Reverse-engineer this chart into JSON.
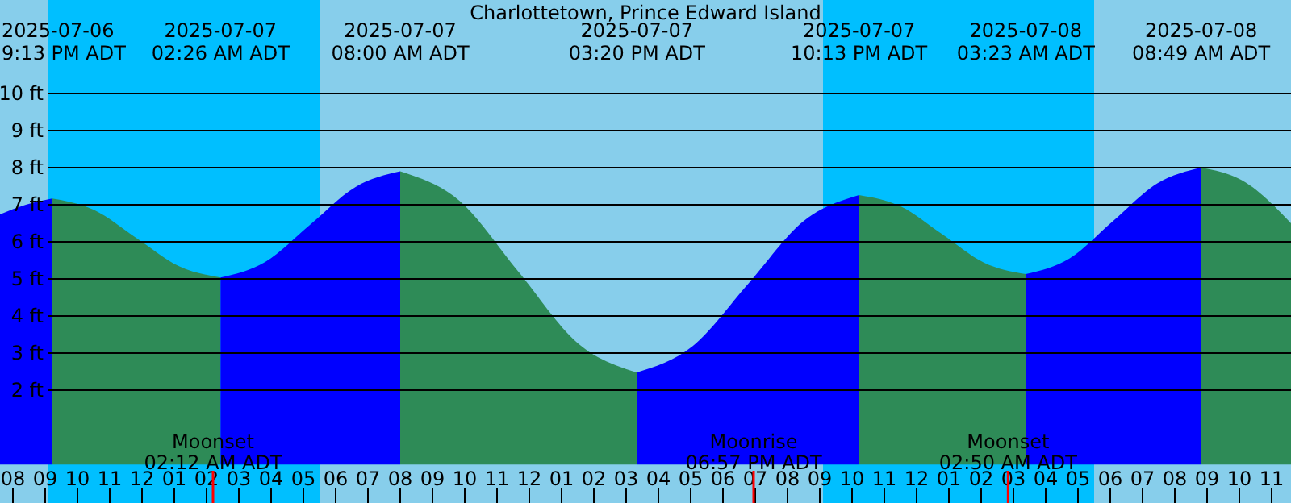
{
  "chart_data": {
    "type": "area",
    "title": "Charlottetown, Prince Edward Island",
    "series": [
      {
        "color": "#0000ff",
        "x": [
          "2025-07-06T19:36",
          "2025-07-06T20:24",
          "2025-07-06T21:13"
        ],
        "values": [
          6.74,
          7.0,
          7.17
        ]
      },
      {
        "color": "#2e8b57",
        "x": [
          "2025-07-06T21:13",
          "2025-07-06T22:31",
          "2025-07-06T23:50",
          "2025-07-07T01:08",
          "2025-07-07T02:26"
        ],
        "values": [
          7.17,
          6.86,
          6.1,
          5.35,
          5.04
        ]
      },
      {
        "color": "#0000ff",
        "x": [
          "2025-07-07T02:26",
          "2025-07-07T03:49",
          "2025-07-07T05:13",
          "2025-07-07T06:37",
          "2025-07-07T08:00"
        ],
        "values": [
          5.04,
          5.46,
          6.47,
          7.48,
          7.9
        ]
      },
      {
        "color": "#2e8b57",
        "x": [
          "2025-07-07T08:00",
          "2025-07-07T09:50",
          "2025-07-07T11:40",
          "2025-07-07T13:30",
          "2025-07-07T15:20"
        ],
        "values": [
          7.9,
          7.11,
          5.19,
          3.27,
          2.48
        ]
      },
      {
        "color": "#0000ff",
        "x": [
          "2025-07-07T15:20",
          "2025-07-07T17:03",
          "2025-07-07T18:47",
          "2025-07-07T20:30",
          "2025-07-07T22:13"
        ],
        "values": [
          2.48,
          3.18,
          4.87,
          6.56,
          7.26
        ]
      },
      {
        "color": "#2e8b57",
        "x": [
          "2025-07-07T22:13",
          "2025-07-07T23:31",
          "2025-07-08T00:48",
          "2025-07-08T02:05",
          "2025-07-08T03:23"
        ],
        "values": [
          7.26,
          6.95,
          6.2,
          5.44,
          5.13
        ]
      },
      {
        "color": "#0000ff",
        "x": [
          "2025-07-08T03:23",
          "2025-07-08T04:44",
          "2025-07-08T06:06",
          "2025-07-08T07:28",
          "2025-07-08T08:49"
        ],
        "values": [
          5.13,
          5.55,
          6.57,
          7.58,
          8.0
        ]
      },
      {
        "color": "#2e8b57",
        "x": [
          "2025-07-08T08:49",
          "2025-07-08T10:12",
          "2025-07-08T11:36"
        ],
        "values": [
          8.0,
          7.6,
          6.5
        ]
      }
    ],
    "xlim": [
      "2025-07-06T19:36",
      "2025-07-08T11:36"
    ],
    "xticks": [
      {
        "value": "2025-07-06T20:00",
        "label": "08"
      },
      {
        "value": "2025-07-06T21:00",
        "label": "09"
      },
      {
        "value": "2025-07-06T22:00",
        "label": "10"
      },
      {
        "value": "2025-07-06T23:00",
        "label": "11"
      },
      {
        "value": "2025-07-07T00:00",
        "label": "12"
      },
      {
        "value": "2025-07-07T01:00",
        "label": "01"
      },
      {
        "value": "2025-07-07T02:00",
        "label": "02"
      },
      {
        "value": "2025-07-07T03:00",
        "label": "03"
      },
      {
        "value": "2025-07-07T04:00",
        "label": "04"
      },
      {
        "value": "2025-07-07T05:00",
        "label": "05"
      },
      {
        "value": "2025-07-07T06:00",
        "label": "06"
      },
      {
        "value": "2025-07-07T07:00",
        "label": "07"
      },
      {
        "value": "2025-07-07T08:00",
        "label": "08"
      },
      {
        "value": "2025-07-07T09:00",
        "label": "09"
      },
      {
        "value": "2025-07-07T10:00",
        "label": "10"
      },
      {
        "value": "2025-07-07T11:00",
        "label": "11"
      },
      {
        "value": "2025-07-07T12:00",
        "label": "12"
      },
      {
        "value": "2025-07-07T13:00",
        "label": "01"
      },
      {
        "value": "2025-07-07T14:00",
        "label": "02"
      },
      {
        "value": "2025-07-07T15:00",
        "label": "03"
      },
      {
        "value": "2025-07-07T16:00",
        "label": "04"
      },
      {
        "value": "2025-07-07T17:00",
        "label": "05"
      },
      {
        "value": "2025-07-07T18:00",
        "label": "06"
      },
      {
        "value": "2025-07-07T19:00",
        "label": "07"
      },
      {
        "value": "2025-07-07T20:00",
        "label": "08"
      },
      {
        "value": "2025-07-07T21:00",
        "label": "09"
      },
      {
        "value": "2025-07-07T22:00",
        "label": "10"
      },
      {
        "value": "2025-07-07T23:00",
        "label": "11"
      },
      {
        "value": "2025-07-08T00:00",
        "label": "12"
      },
      {
        "value": "2025-07-08T01:00",
        "label": "01"
      },
      {
        "value": "2025-07-08T02:00",
        "label": "02"
      },
      {
        "value": "2025-07-08T03:00",
        "label": "03"
      },
      {
        "value": "2025-07-08T04:00",
        "label": "04"
      },
      {
        "value": "2025-07-08T05:00",
        "label": "05"
      },
      {
        "value": "2025-07-08T06:00",
        "label": "06"
      },
      {
        "value": "2025-07-08T07:00",
        "label": "07"
      },
      {
        "value": "2025-07-08T08:00",
        "label": "08"
      },
      {
        "value": "2025-07-08T09:00",
        "label": "09"
      },
      {
        "value": "2025-07-08T10:00",
        "label": "10"
      },
      {
        "value": "2025-07-08T11:00",
        "label": "11"
      }
    ],
    "ylim": [
      -1.04,
      12.52
    ],
    "yticks": [
      {
        "value": 2,
        "label": "2 ft"
      },
      {
        "value": 3,
        "label": "3 ft"
      },
      {
        "value": 4,
        "label": "4 ft"
      },
      {
        "value": 5,
        "label": "5 ft"
      },
      {
        "value": 6,
        "label": "6 ft"
      },
      {
        "value": 7,
        "label": "7 ft"
      },
      {
        "value": 8,
        "label": "8 ft"
      },
      {
        "value": 9,
        "label": "9 ft"
      },
      {
        "value": 10,
        "label": "10 ft"
      }
    ],
    "grid": "y",
    "bands": [
      {
        "axis": "x",
        "from": "2025-07-06T21:06",
        "to": "2025-07-07T05:30",
        "color": "#00bfff"
      },
      {
        "axis": "x",
        "from": "2025-07-07T21:06",
        "to": "2025-07-08T05:30",
        "color": "#00bfff"
      }
    ],
    "ref_lines": [
      {
        "axis": "x",
        "value": "2025-07-07T02:12",
        "label": "Moonset 02:12 AM ADT",
        "color": "#ff0000"
      },
      {
        "axis": "x",
        "value": "2025-07-07T18:57",
        "label": "Moonrise 06:57 PM ADT",
        "color": "#ff0000"
      },
      {
        "axis": "x",
        "value": "2025-07-08T02:50",
        "label": "Moonset 02:50 AM ADT",
        "color": "#ff0000"
      }
    ],
    "annotations": [
      "2025-07-06",
      "9:13 PM ADT",
      "2025-07-07",
      "02:26 AM ADT",
      "2025-07-07",
      "08:00 AM ADT",
      "2025-07-07",
      "03:20 PM ADT",
      "2025-07-07",
      "10:13 PM ADT",
      "2025-07-08",
      "03:23 AM ADT",
      "2025-07-08",
      "08:49 AM ADT"
    ]
  }
}
